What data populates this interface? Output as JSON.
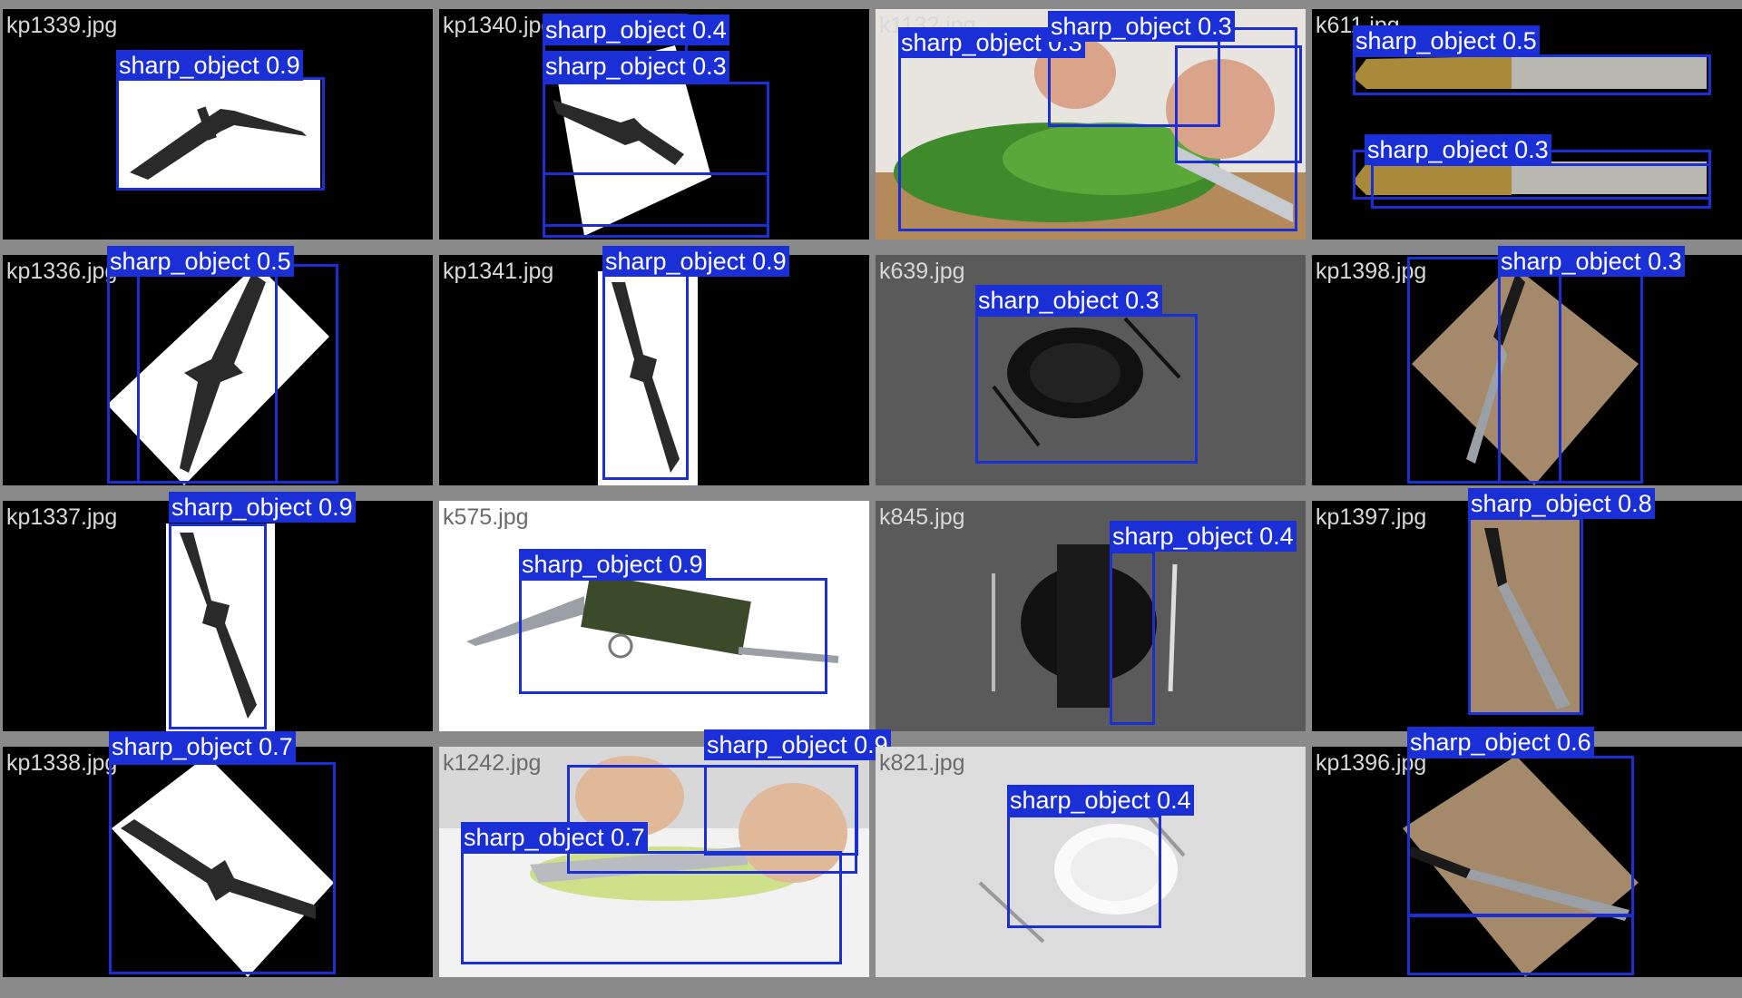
{
  "colors": {
    "box": "#1a2fd6",
    "label_text": "#ffffff",
    "separator": "#8a8a8a"
  },
  "tiles": [
    {
      "filename": "kp1339.jpg",
      "scene": "knife-on-white",
      "labels": [
        "sharp_object 0.9"
      ]
    },
    {
      "filename": "kp1340.jpg",
      "scene": "knife-rotated-white",
      "labels": [
        "sharp_object 0.4",
        "sharp_object 0.3"
      ]
    },
    {
      "filename": "k1132.jpg",
      "scene": "chopping-greens",
      "labels": [
        "sharp_object 0.3",
        "sharp_object 0.3"
      ]
    },
    {
      "filename": "k611.jpg",
      "scene": "two-ornate-knives",
      "labels": [
        "sharp_object 0.5",
        "sharp_object 0.3"
      ]
    },
    {
      "filename": "kp1336.jpg",
      "scene": "knife-diamond",
      "labels": [
        "sharp_object 0.5"
      ]
    },
    {
      "filename": "kp1341.jpg",
      "scene": "knife-portrait",
      "labels": [
        "sharp_object 0.9"
      ]
    },
    {
      "filename": "k639.jpg",
      "scene": "plate-grey",
      "labels": [
        "sharp_object 0.3"
      ]
    },
    {
      "filename": "kp1398.jpg",
      "scene": "board-diamond",
      "labels": [
        "sharp_object 0.3"
      ]
    },
    {
      "filename": "kp1337.jpg",
      "scene": "knife-portrait",
      "labels": [
        "sharp_object 0.9"
      ]
    },
    {
      "filename": "k575.jpg",
      "scene": "multitool",
      "labels": [
        "sharp_object 0.9"
      ]
    },
    {
      "filename": "k845.jpg",
      "scene": "plate-napkin",
      "labels": [
        "sharp_object 0.4"
      ]
    },
    {
      "filename": "kp1397.jpg",
      "scene": "board-portrait",
      "labels": [
        "sharp_object 0.8"
      ]
    },
    {
      "filename": "kp1338.jpg",
      "scene": "knife-diamond2",
      "labels": [
        "sharp_object 0.7"
      ]
    },
    {
      "filename": "k1242.jpg",
      "scene": "slicing-apple",
      "labels": [
        "sharp_object 0.9",
        "sharp_object 0.7"
      ]
    },
    {
      "filename": "k821.jpg",
      "scene": "plate-white",
      "labels": [
        "sharp_object 0.4"
      ]
    },
    {
      "filename": "kp1396.jpg",
      "scene": "board-rotated",
      "labels": [
        "sharp_object 0.6"
      ]
    }
  ]
}
